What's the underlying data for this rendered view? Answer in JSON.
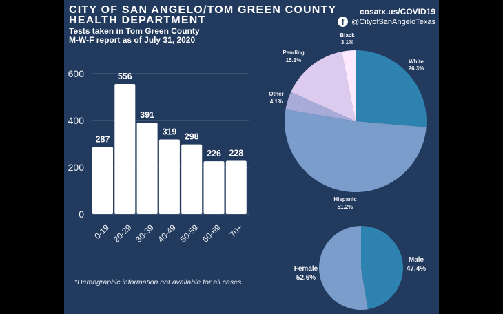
{
  "header": {
    "title_line1": "CITY OF SAN ANGELO/TOM GREEN COUNTY",
    "title_line2": "HEALTH DEPARTMENT",
    "subtitle_line1": "Tests taken in Tom Green County",
    "subtitle_line2": "M-W-F report as of July 31, 2020",
    "website": "cosatx.us/COVID19",
    "facebook_handle": "@CityofSanAngeloTexas",
    "facebook_icon_glyph": "f"
  },
  "footnote": "*Demographic information not available for all cases.",
  "colors": {
    "background": "#223a5e",
    "letterbox": "#000000",
    "bar": "#ffffff",
    "text": "#ffffff"
  },
  "chart_data": [
    {
      "type": "bar",
      "title": "",
      "xlabel": "",
      "ylabel": "",
      "categories": [
        "0-19",
        "20-29",
        "30-39",
        "40-49",
        "50-59",
        "60-69",
        "70+"
      ],
      "values": [
        287,
        556,
        391,
        319,
        298,
        226,
        228
      ],
      "value_labels": [
        "287",
        "556",
        "391",
        "319",
        "298",
        "226",
        "228"
      ],
      "ylim": [
        0,
        600
      ],
      "yticks": [
        0,
        200,
        400,
        600
      ],
      "grid": true,
      "bar_color": "#ffffff"
    },
    {
      "type": "pie",
      "title": "",
      "labels": [
        "White",
        "Hispanic",
        "Other",
        "Pending",
        "Black"
      ],
      "values": [
        26.3,
        51.2,
        4.1,
        15.1,
        3.1
      ],
      "value_labels": [
        "26.3%",
        "51.2%",
        "4.1%",
        "15.1%",
        "3.1%"
      ],
      "colors": [
        "#2e82b0",
        "#7b9dcc",
        "#a8aad8",
        "#dccbee",
        "#fde9fd"
      ]
    },
    {
      "type": "pie",
      "title": "",
      "labels": [
        "Male",
        "Female"
      ],
      "values": [
        47.4,
        52.6
      ],
      "value_labels": [
        "47.4%",
        "52.6%"
      ],
      "colors": [
        "#2e82b0",
        "#7b9dcc"
      ]
    }
  ]
}
